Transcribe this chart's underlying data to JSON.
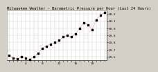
{
  "title": "Milwaukee Weather - Barometric Pressure per Hour (Last 24 Hours)",
  "background_color": "#d4d0c8",
  "plot_bg_color": "#ffffff",
  "grid_color": "#888888",
  "line_color": "#ff0000",
  "marker_color": "#000000",
  "ylim": [
    29.55,
    30.25
  ],
  "xlim": [
    -0.5,
    23.5
  ],
  "ytick_values": [
    29.6,
    29.7,
    29.8,
    29.9,
    30.0,
    30.1,
    30.2
  ],
  "ytick_labels": [
    "29.6",
    "29.7",
    "29.8",
    "29.9",
    "30.0",
    "30.1",
    "30.2"
  ],
  "xtick_positions": [
    0,
    1,
    2,
    3,
    4,
    5,
    6,
    7,
    8,
    9,
    10,
    11,
    12,
    13,
    14,
    15,
    16,
    17,
    18,
    19,
    20,
    21,
    22,
    23
  ],
  "xtick_labels": [
    "",
    "",
    "",
    "",
    "4",
    "",
    "",
    "",
    "8",
    "",
    "",
    "",
    "12",
    "",
    "",
    "",
    "16",
    "",
    "",
    "",
    "20",
    "",
    "",
    ""
  ],
  "vgrid_positions": [
    0,
    1,
    2,
    3,
    4,
    5,
    6,
    7,
    8,
    9,
    10,
    11,
    12,
    13,
    14,
    15,
    16,
    17,
    18,
    19,
    20,
    21,
    22,
    23
  ],
  "pressure_values": [
    29.62,
    29.58,
    29.57,
    29.6,
    29.58,
    29.56,
    29.6,
    29.65,
    29.72,
    29.75,
    29.78,
    29.8,
    29.83,
    29.88,
    29.9,
    29.88,
    29.92,
    30.0,
    30.08,
    30.05,
    29.98,
    30.12,
    30.18,
    30.22
  ],
  "title_fontsize": 4.0,
  "tick_fontsize": 3.2,
  "line_width": 0.5,
  "marker_size": 1.8,
  "marker_style": "s"
}
